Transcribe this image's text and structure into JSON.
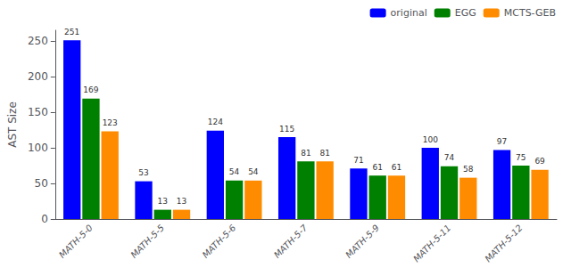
{
  "chart_data": {
    "type": "bar",
    "categories": [
      "MATH-5-0",
      "MATH-5-5",
      "MATH-5-6",
      "MATH-5-7",
      "MATH-5-9",
      "MATH-5-11",
      "MATH-5-12"
    ],
    "series": [
      {
        "name": "original",
        "color": "#0000ff",
        "values": [
          251,
          53,
          124,
          115,
          71,
          100,
          97
        ]
      },
      {
        "name": "EGG",
        "color": "#008000",
        "values": [
          169,
          13,
          54,
          81,
          61,
          74,
          75
        ]
      },
      {
        "name": "MCTS-GEB",
        "color": "#ff8c00",
        "values": [
          123,
          13,
          54,
          81,
          61,
          58,
          69
        ]
      }
    ],
    "ylabel": "AST Size",
    "ylim": [
      0,
      265
    ],
    "yticks": [
      0,
      50,
      100,
      150,
      200,
      250
    ],
    "grid": false,
    "legend": "upper right",
    "data_labels": true
  }
}
